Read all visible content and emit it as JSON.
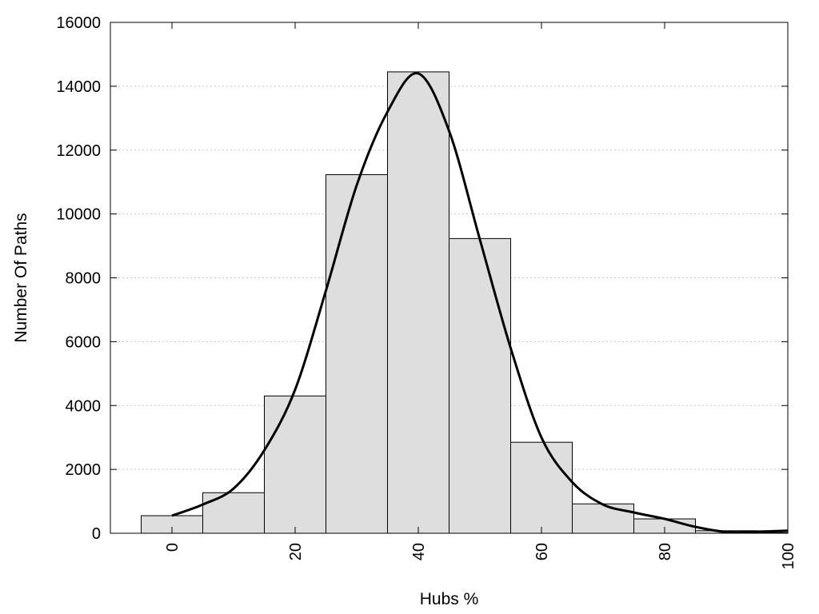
{
  "chart_data": {
    "type": "bar",
    "subtype": "histogram-with-density-curve",
    "title": "",
    "xlabel": "Hubs %",
    "ylabel": "Number Of Paths",
    "xlim": [
      -10,
      100
    ],
    "ylim": [
      0,
      16000
    ],
    "x_ticks": [
      0,
      20,
      40,
      60,
      80,
      100
    ],
    "y_ticks": [
      0,
      2000,
      4000,
      6000,
      8000,
      10000,
      12000,
      14000,
      16000
    ],
    "x_tick_rotation": -90,
    "grid": {
      "y": true,
      "x": false,
      "style": "dotted"
    },
    "legend": "none",
    "bins": [
      {
        "x0": -5,
        "x1": 5,
        "value": 550
      },
      {
        "x0": 5,
        "x1": 15,
        "value": 1270
      },
      {
        "x0": 15,
        "x1": 25,
        "value": 4300
      },
      {
        "x0": 25,
        "x1": 35,
        "value": 11230
      },
      {
        "x0": 35,
        "x1": 45,
        "value": 14450
      },
      {
        "x0": 45,
        "x1": 55,
        "value": 9230
      },
      {
        "x0": 55,
        "x1": 65,
        "value": 2850
      },
      {
        "x0": 65,
        "x1": 75,
        "value": 920
      },
      {
        "x0": 75,
        "x1": 85,
        "value": 450
      },
      {
        "x0": 85,
        "x1": 95,
        "value": 80
      },
      {
        "x0": 95,
        "x1": 105,
        "value": 20
      }
    ],
    "curve": {
      "x": [
        0,
        5,
        10,
        15,
        20,
        25,
        30,
        35,
        40,
        45,
        50,
        55,
        60,
        65,
        70,
        75,
        80,
        85,
        90,
        95,
        100
      ],
      "y": [
        550,
        900,
        1400,
        2600,
        4500,
        7600,
        10900,
        13200,
        14400,
        12600,
        9200,
        5800,
        3000,
        1600,
        900,
        650,
        450,
        200,
        40,
        50,
        80
      ]
    },
    "colors": {
      "bar_fill": "#dedede",
      "bar_stroke": "#000000",
      "curve": "#000000",
      "grid": "#c8c8c8"
    }
  }
}
